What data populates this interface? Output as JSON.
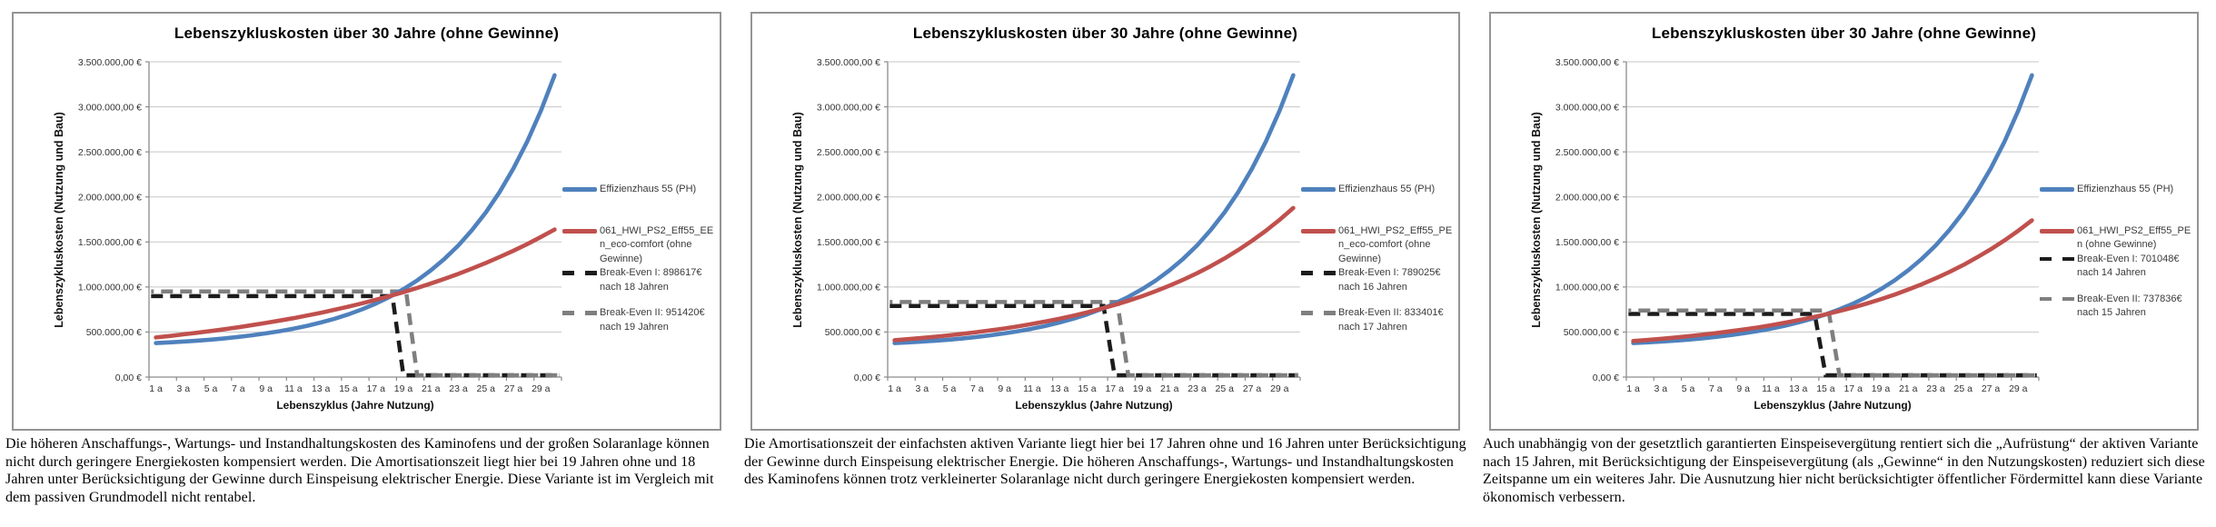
{
  "colors": {
    "blue": "#4F81BD",
    "red": "#C0504D",
    "black_dash": "#1C1C1C",
    "gray_dash": "#7F7F7F",
    "grid": "#C7C7C7",
    "axis": "#8C8C8C",
    "box_border": "#949494",
    "tick_text": "#333333",
    "legend_text": "#3A3A3A"
  },
  "axes": {
    "y_tick_labels": [
      "3.500.000,00 €",
      "3.000.000,00 €",
      "2.500.000,00 €",
      "2.000.000,00 €",
      "1.500.000,00 €",
      "1.000.000,00 €",
      "500.000,00 €",
      "0,00 €"
    ],
    "x_tick_labels": [
      "1 a",
      "3 a",
      "5 a",
      "7 a",
      "9 a",
      "11 a",
      "13 a",
      "15 a",
      "17 a",
      "19 a",
      "21 a",
      "23 a",
      "25 a",
      "27 a",
      "29 a"
    ],
    "y_max": 3500000,
    "y_step": 500000,
    "years": 30
  },
  "chart_data": [
    {
      "type": "line",
      "title": "Lebenszykluskosten über 30 Jahre (ohne Gewinne)",
      "xlabel": "Lebenszyklus (Jahre Nutzung)",
      "ylabel": "Lebenszykluskosten (Nutzung und Bau)",
      "ylim": [
        0,
        3500000
      ],
      "grid": true,
      "legend_position": "right",
      "series": [
        {
          "name": "Effizienzhaus 55 (PH)",
          "color": "#4F81BD",
          "style": "solid",
          "values": [
            377000,
            385000,
            394000,
            404000,
            416000,
            430000,
            446000,
            464000,
            485000,
            509000,
            537000,
            569000,
            606000,
            648000,
            696000,
            752000,
            816000,
            890000,
            975000,
            1072000,
            1185000,
            1314000,
            1462000,
            1633000,
            1829000,
            2055000,
            2314000,
            2613000,
            2956000,
            3351000
          ]
        },
        {
          "name": "061_HWI_PS2_Eff55_EEn_eco-comfort (ohne Gewinne)",
          "color": "#C0504D",
          "style": "solid",
          "values": [
            440000,
            456000,
            474000,
            492000,
            511000,
            532000,
            553000,
            577000,
            601000,
            627000,
            654000,
            684000,
            714000,
            747000,
            782000,
            819000,
            858000,
            899000,
            943000,
            989000,
            1039000,
            1091000,
            1146000,
            1205000,
            1267000,
            1333000,
            1402000,
            1476000,
            1555000,
            1638000
          ]
        }
      ],
      "break_even": [
        {
          "name": "Break-Even I: 898617€ nach 18 Jahren",
          "value": 898617,
          "after_years": 18,
          "color": "#1C1C1C"
        },
        {
          "name": "Break-Even II: 951420€ nach 19 Jahren",
          "value": 951420,
          "after_years": 19,
          "color": "#7F7F7F"
        }
      ],
      "legend": [
        {
          "lines": [
            "Effizienzhaus 55 (PH)"
          ],
          "swatch": "solid",
          "color": "#4F81BD"
        },
        {
          "lines": [
            "061_HWI_PS2_Eff55_EE",
            "n_eco-comfort (ohne",
            "Gewinne)"
          ],
          "swatch": "solid",
          "color": "#C0504D"
        },
        {
          "lines": [
            "Break-Even I: 898617€",
            "nach 18 Jahren"
          ],
          "swatch": "dashed",
          "color": "#1C1C1C"
        },
        {
          "lines": [
            "Break-Even II: 951420€",
            "nach 19 Jahren"
          ],
          "swatch": "dashed",
          "color": "#7F7F7F"
        }
      ],
      "caption": "Die höheren Anschaffungs-, Wartungs- und Instandhaltungskosten des Kaminofens und der großen Solaranlage können nicht durch geringere Energiekosten kompensiert werden. Die Amortisationszeit liegt hier bei 19 Jahren ohne und 18 Jahren unter Berücksichtigung der Gewinne durch Einspeisung elektrischer Energie. Diese Variante ist im Vergleich mit dem passiven Grundmodell nicht rentabel."
    },
    {
      "type": "line",
      "title": "Lebenszykluskosten über 30 Jahre (ohne Gewinne)",
      "xlabel": "Lebenszyklus (Jahre Nutzung)",
      "ylabel": "Lebenszykluskosten (Nutzung und Bau)",
      "ylim": [
        0,
        3500000
      ],
      "grid": true,
      "legend_position": "right",
      "series": [
        {
          "name": "Effizienzhaus 55 (PH)",
          "color": "#4F81BD",
          "style": "solid",
          "values": [
            377000,
            385000,
            394000,
            404000,
            416000,
            430000,
            446000,
            464000,
            485000,
            509000,
            537000,
            569000,
            606000,
            648000,
            696000,
            752000,
            816000,
            890000,
            975000,
            1072000,
            1185000,
            1314000,
            1462000,
            1633000,
            1829000,
            2055000,
            2314000,
            2613000,
            2956000,
            3351000
          ]
        },
        {
          "name": "061_HWI_PS2_Eff55_PEn_eco-comfort (ohne Gewinne)",
          "color": "#C0504D",
          "style": "solid",
          "values": [
            410000,
            422000,
            435000,
            449000,
            464000,
            481000,
            499000,
            519000,
            540000,
            564000,
            590000,
            618000,
            648000,
            681000,
            717000,
            757000,
            800000,
            847000,
            898000,
            954000,
            1015000,
            1081000,
            1153000,
            1232000,
            1317000,
            1411000,
            1513000,
            1624000,
            1745000,
            1877000
          ]
        }
      ],
      "break_even": [
        {
          "name": "Break-Even I: 789025€ nach 16 Jahren",
          "value": 789025,
          "after_years": 16,
          "color": "#1C1C1C"
        },
        {
          "name": "Break-Even II: 833401€ nach 17 Jahren",
          "value": 833401,
          "after_years": 17,
          "color": "#7F7F7F"
        }
      ],
      "legend": [
        {
          "lines": [
            "Effizienzhaus 55 (PH)"
          ],
          "swatch": "solid",
          "color": "#4F81BD"
        },
        {
          "lines": [
            "061_HWI_PS2_Eff55_PE",
            "n_eco-comfort (ohne",
            "Gewinne)"
          ],
          "swatch": "solid",
          "color": "#C0504D"
        },
        {
          "lines": [
            "Break-Even I: 789025€",
            "nach 16 Jahren"
          ],
          "swatch": "dashed",
          "color": "#1C1C1C"
        },
        {
          "lines": [
            "Break-Even II: 833401€",
            "nach 17 Jahren"
          ],
          "swatch": "dashed",
          "color": "#7F7F7F"
        }
      ],
      "caption": "Die Amortisationszeit der einfachsten aktiven Variante liegt hier bei 17 Jahren ohne und 16 Jahren unter Berücksichtigung der Gewinne durch Einspeisung elektrischer Energie. Die höheren Anschaffungs-, Wartungs- und Instandhaltungskosten des Kaminofens können trotz verkleinerter Solaranlage nicht durch geringere Energiekosten kompensiert werden."
    },
    {
      "type": "line",
      "title": "Lebenszykluskosten über 30 Jahre (ohne Gewinne)",
      "xlabel": "Lebenszyklus (Jahre Nutzung)",
      "ylabel": "Lebenszykluskosten (Nutzung und Bau)",
      "ylim": [
        0,
        3500000
      ],
      "grid": true,
      "legend_position": "right",
      "series": [
        {
          "name": "Effizienzhaus 55 (PH)",
          "color": "#4F81BD",
          "style": "solid",
          "values": [
            377000,
            385000,
            394000,
            404000,
            416000,
            430000,
            446000,
            464000,
            485000,
            509000,
            537000,
            569000,
            606000,
            648000,
            696000,
            752000,
            816000,
            890000,
            975000,
            1072000,
            1185000,
            1314000,
            1462000,
            1633000,
            1829000,
            2055000,
            2314000,
            2613000,
            2956000,
            3351000
          ]
        },
        {
          "name": "061_HWI_PS2_Eff55_PEn (ohne Gewinne)",
          "color": "#C0504D",
          "style": "solid",
          "values": [
            400000,
            412000,
            425000,
            438000,
            454000,
            470000,
            488000,
            507000,
            528000,
            550000,
            575000,
            602000,
            631000,
            662000,
            696000,
            733000,
            773000,
            817000,
            864000,
            915000,
            971000,
            1031000,
            1096000,
            1167000,
            1244000,
            1328000,
            1418000,
            1517000,
            1624000,
            1740000
          ]
        }
      ],
      "break_even": [
        {
          "name": "Break-Even I: 701048€ nach 14 Jahren",
          "value": 701048,
          "after_years": 14,
          "color": "#1C1C1C"
        },
        {
          "name": "Break-Even II: 737836€ nach 15 Jahren",
          "value": 737836,
          "after_years": 15,
          "color": "#7F7F7F"
        }
      ],
      "legend": [
        {
          "lines": [
            "Effizienzhaus 55 (PH)"
          ],
          "swatch": "solid",
          "color": "#4F81BD"
        },
        {
          "lines": [
            "061_HWI_PS2_Eff55_PE",
            "n (ohne Gewinne)"
          ],
          "swatch": "solid",
          "color": "#C0504D"
        },
        {
          "lines": [
            "Break-Even I: 701048€",
            "nach 14 Jahren"
          ],
          "swatch": "dashed",
          "color": "#1C1C1C"
        },
        {
          "lines": [
            "Break-Even II: 737836€",
            "nach 15 Jahren"
          ],
          "swatch": "dashed",
          "color": "#7F7F7F"
        }
      ],
      "caption": "Auch unabhängig von der gesetztlich garantierten Einspeisevergütung rentiert sich die „Aufrüstung“ der aktiven Variante nach 15 Jahren, mit Berücksichtigung der Einspeisevergütung (als „Gewinne“ in den Nutzungskosten) reduziert sich diese Zeitspanne um ein weiteres Jahr. Die Ausnutzung hier nicht berücksichtigter öffentlicher Fördermittel kann diese Variante ökonomisch verbessern."
    }
  ]
}
